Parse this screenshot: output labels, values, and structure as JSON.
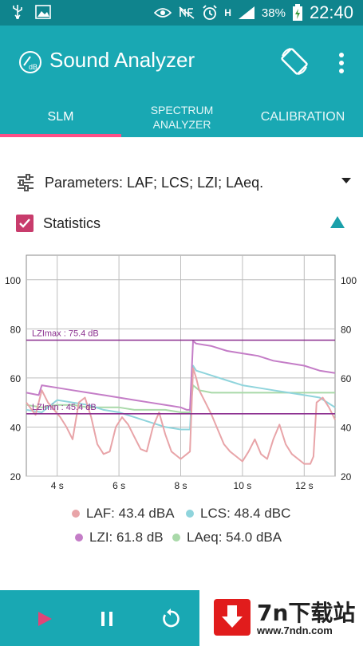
{
  "status_bar": {
    "battery": "38%",
    "time": "22:40",
    "signal_label": "H"
  },
  "app": {
    "title": "Sound Analyzer",
    "logo_text": "dB"
  },
  "tabs": [
    {
      "label": "SLM",
      "active": true
    },
    {
      "label": "SPECTRUM\nANALYZER",
      "active": false
    },
    {
      "label": "CALIBRATION",
      "active": false
    }
  ],
  "parameters": {
    "label": "Parameters: LAF; LCS; LZI; LAeq."
  },
  "statistics": {
    "label": "Statistics",
    "checked": true
  },
  "chart_data": {
    "type": "line",
    "xlabel": "",
    "ylabel": "",
    "xlim": [
      3.0,
      13.0
    ],
    "ylim": [
      20,
      110
    ],
    "x_ticks": [
      4,
      6,
      8,
      10,
      12
    ],
    "x_tick_labels": [
      "4 s",
      "6 s",
      "8 s",
      "10 s",
      "12 s"
    ],
    "y_ticks": [
      20,
      40,
      60,
      80,
      100
    ],
    "y_tick_labels": [
      "20",
      "40",
      "60",
      "80",
      "100"
    ],
    "grid": true,
    "annotations": [
      {
        "label": "LZImax : 75.4 dB",
        "value": 75.4,
        "color": "#8b2f8f"
      },
      {
        "label": "LZImin : 45.4 dB",
        "value": 45.4,
        "color": "#8b2f8f"
      }
    ],
    "series": [
      {
        "name": "LAF",
        "color": "#e8a4a8",
        "x": [
          3.0,
          3.3,
          3.5,
          3.7,
          3.9,
          4.1,
          4.3,
          4.5,
          4.7,
          4.9,
          5.1,
          5.3,
          5.5,
          5.7,
          5.9,
          6.1,
          6.3,
          6.5,
          6.7,
          6.9,
          7.1,
          7.3,
          7.5,
          7.7,
          7.9,
          8.0,
          8.1,
          8.2,
          8.3,
          8.4,
          8.5,
          8.6,
          8.8,
          9.0,
          9.2,
          9.4,
          9.6,
          9.8,
          10.0,
          10.2,
          10.4,
          10.6,
          10.8,
          11.0,
          11.2,
          11.4,
          11.6,
          11.8,
          12.0,
          12.2,
          12.3,
          12.4,
          12.6,
          12.8,
          13.0
        ],
        "y": [
          50,
          45,
          55,
          50,
          47,
          44,
          40,
          35,
          50,
          52,
          44,
          33,
          29,
          30,
          40,
          44,
          41,
          36,
          31,
          30,
          40,
          46,
          37,
          30,
          28,
          27,
          28,
          29,
          30,
          64,
          60,
          55,
          50,
          45,
          39,
          33,
          30,
          28,
          26,
          30,
          35,
          29,
          27,
          35,
          41,
          33,
          29,
          27,
          25,
          25,
          28,
          50,
          52,
          48,
          43
        ],
        "legend_label": "LAF: 43.4 dBA"
      },
      {
        "name": "LCS",
        "color": "#8fd4dc",
        "x": [
          3.0,
          3.5,
          4.0,
          4.5,
          5.0,
          5.5,
          6.0,
          6.5,
          7.0,
          7.5,
          8.0,
          8.2,
          8.3,
          8.4,
          8.5,
          9.0,
          9.5,
          10.0,
          10.5,
          11.0,
          11.5,
          12.0,
          12.5,
          13.0
        ],
        "y": [
          47,
          46,
          51,
          50,
          49,
          47,
          46,
          44,
          42,
          40,
          39,
          39,
          39,
          65,
          63,
          61,
          59,
          57,
          56,
          55,
          54,
          53,
          52,
          48
        ],
        "legend_label": "LCS: 48.4 dBC"
      },
      {
        "name": "LZI",
        "color": "#c47dc7",
        "x": [
          3.0,
          3.4,
          3.5,
          4.0,
          4.5,
          5.0,
          5.5,
          6.0,
          6.5,
          7.0,
          7.5,
          8.0,
          8.2,
          8.3,
          8.4,
          8.5,
          9.0,
          9.5,
          10.0,
          10.5,
          11.0,
          11.5,
          12.0,
          12.5,
          13.0
        ],
        "y": [
          54,
          53,
          57,
          56,
          55,
          54,
          53,
          52,
          51,
          50,
          49,
          48,
          47,
          47,
          75,
          74,
          73,
          71,
          70,
          69,
          67,
          66,
          65,
          63,
          62
        ],
        "legend_label": "LZI: 61.8 dB"
      },
      {
        "name": "LAeq",
        "color": "#a9d9a9",
        "x": [
          3.0,
          3.5,
          4.0,
          4.5,
          5.0,
          5.5,
          6.0,
          6.5,
          7.0,
          7.5,
          8.0,
          8.2,
          8.3,
          8.4,
          8.6,
          9.0,
          9.5,
          10.0,
          10.5,
          11.0,
          11.5,
          12.0,
          12.5,
          13.0
        ],
        "y": [
          49,
          48,
          49,
          49,
          48,
          48,
          48,
          47,
          47,
          47,
          46,
          46,
          46,
          57,
          55,
          54,
          54,
          54,
          54,
          54,
          54,
          54,
          54,
          54
        ],
        "legend_label": "LAeq: 54.0 dBA"
      }
    ]
  },
  "watermark": {
    "name": "7n下载站",
    "url": "www.7ndn.com"
  },
  "colors": {
    "appbar": "#19a8b3",
    "statusbar": "#0f848d",
    "accent": "#ff4f87",
    "checkbox": "#c83c6c"
  }
}
